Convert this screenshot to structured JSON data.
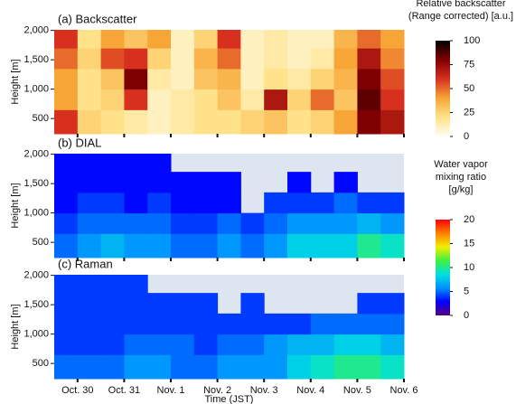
{
  "chart_data": [
    {
      "type": "heatmap",
      "title": "(a) Backscatter",
      "ylabel": "Height [m]",
      "xlim": [
        -0.5,
        7
      ],
      "x_edges": [
        -0.5,
        0,
        0.5,
        1,
        1.5,
        2,
        2.5,
        3,
        3.5,
        4,
        4.5,
        5,
        5.5,
        6,
        6.5,
        7
      ],
      "ylim": [
        240,
        2010
      ],
      "y_edges": [
        240,
        650,
        1000,
        1350,
        1700,
        2010
      ],
      "yticks": [
        {
          "value": 500,
          "label": "500"
        },
        {
          "value": 1000,
          "label": "1,000"
        },
        {
          "value": 1500,
          "label": "1,500"
        },
        {
          "value": 2000,
          "label": "2,000"
        }
      ],
      "z": [
        [
          60,
          25,
          20,
          15,
          10,
          15,
          20,
          20,
          25,
          30,
          20,
          25,
          40,
          80,
          70
        ],
        [
          40,
          20,
          25,
          60,
          10,
          15,
          20,
          30,
          15,
          70,
          25,
          50,
          30,
          85,
          60
        ],
        [
          40,
          20,
          30,
          80,
          15,
          10,
          30,
          35,
          10,
          20,
          15,
          25,
          35,
          80,
          55
        ],
        [
          50,
          25,
          55,
          60,
          25,
          10,
          35,
          50,
          10,
          15,
          10,
          15,
          40,
          70,
          45
        ],
        [
          60,
          20,
          40,
          30,
          40,
          10,
          25,
          60,
          10,
          15,
          10,
          10,
          35,
          50,
          40
        ]
      ],
      "zlim": [
        0,
        100
      ],
      "colormap": [
        "#fffdf5",
        "#ffe28a",
        "#f7a536",
        "#d7301f",
        "#7f0000",
        "#000000"
      ],
      "colorbar": {
        "label": [
          "Relative backscatter",
          "(Range corrected) [a.u.]"
        ],
        "ticks": [
          0,
          25,
          50,
          75,
          100
        ]
      }
    },
    {
      "type": "heatmap",
      "title": "(b) DIAL",
      "ylabel": "Height [m]",
      "xlim": [
        -0.5,
        7
      ],
      "x_edges": [
        -0.5,
        0,
        0.5,
        1,
        1.5,
        2,
        2.5,
        3,
        3.5,
        4,
        4.5,
        5,
        5.5,
        6,
        6.5,
        7
      ],
      "ylim": [
        240,
        2010
      ],
      "y_edges": [
        240,
        650,
        1000,
        1350,
        1700,
        2010
      ],
      "yticks": [
        {
          "value": 500,
          "label": "500"
        },
        {
          "value": 1000,
          "label": "1,000"
        },
        {
          "value": 1500,
          "label": "1,500"
        },
        {
          "value": 2000,
          "label": "2,000"
        }
      ],
      "z": [
        [
          5,
          6,
          7,
          6,
          6,
          5,
          5,
          6,
          5,
          6,
          8,
          8,
          8,
          10,
          9
        ],
        [
          4,
          5,
          5,
          5,
          5,
          4,
          4,
          5,
          4,
          5,
          6,
          6,
          6,
          7,
          6
        ],
        [
          3,
          4,
          4,
          3,
          4,
          3,
          3,
          3,
          null,
          4,
          4,
          4,
          5,
          4,
          4
        ],
        [
          3,
          3,
          3,
          3,
          3,
          3,
          3,
          3,
          null,
          null,
          3,
          null,
          3,
          null,
          null
        ],
        [
          3,
          3,
          3,
          3,
          3,
          null,
          null,
          null,
          null,
          null,
          null,
          null,
          null,
          null,
          null
        ]
      ],
      "zlim": [
        0,
        20
      ],
      "colormap": [
        "#5a0080",
        "#0000ff",
        "#0090ff",
        "#00e0e0",
        "#40f040",
        "#f0f000",
        "#ff8000",
        "#ff0000"
      ],
      "missing_color": "#dde5f0",
      "colorbar": {
        "label": [
          "Water vapor",
          "mixing ratio",
          "[g/kg]"
        ],
        "ticks": [
          0,
          5,
          10,
          15,
          20
        ]
      }
    },
    {
      "type": "heatmap",
      "title": "(c) Raman",
      "ylabel": "Height [m]",
      "xlabel": "Time (JST)",
      "xlim": [
        -0.5,
        7
      ],
      "x_edges": [
        -0.5,
        0,
        0.5,
        1,
        1.5,
        2,
        2.5,
        3,
        3.5,
        4,
        4.5,
        5,
        5.5,
        6,
        6.5,
        7
      ],
      "xticks": [
        {
          "value": 0,
          "label": "Oct. 30"
        },
        {
          "value": 1,
          "label": "Oct. 31"
        },
        {
          "value": 2,
          "label": "Nov. 1"
        },
        {
          "value": 3,
          "label": "Nov. 2"
        },
        {
          "value": 4,
          "label": "Nov. 3"
        },
        {
          "value": 5,
          "label": "Nov. 4"
        },
        {
          "value": 6,
          "label": "Nov. 5"
        },
        {
          "value": 7,
          "label": "Nov. 6"
        }
      ],
      "ylim": [
        240,
        2010
      ],
      "y_edges": [
        240,
        650,
        1000,
        1350,
        1700,
        2010
      ],
      "yticks": [
        {
          "value": 500,
          "label": "500"
        },
        {
          "value": 1000,
          "label": "1,000"
        },
        {
          "value": 1500,
          "label": "1,500"
        },
        {
          "value": 2000,
          "label": "2,000"
        }
      ],
      "z": [
        [
          5,
          5,
          5,
          6,
          6,
          5,
          5,
          6,
          6,
          6,
          8,
          9,
          10,
          10,
          9
        ],
        [
          4,
          4,
          4,
          5,
          5,
          5,
          4,
          5,
          5,
          6,
          7,
          7,
          8,
          8,
          7
        ],
        [
          4,
          4,
          4,
          4,
          4,
          4,
          4,
          4,
          4,
          4,
          4,
          5,
          5,
          5,
          5
        ],
        [
          4,
          4,
          4,
          4,
          4,
          4,
          4,
          null,
          4,
          null,
          null,
          null,
          null,
          4,
          4
        ],
        [
          4,
          4,
          4,
          4,
          null,
          null,
          null,
          null,
          null,
          null,
          null,
          null,
          null,
          null,
          null
        ]
      ],
      "zlim": [
        0,
        20
      ],
      "colormap": [
        "#5a0080",
        "#0000ff",
        "#0090ff",
        "#00e0e0",
        "#40f040",
        "#f0f000",
        "#ff8000",
        "#ff0000"
      ],
      "missing_color": "#dde5f0"
    }
  ]
}
